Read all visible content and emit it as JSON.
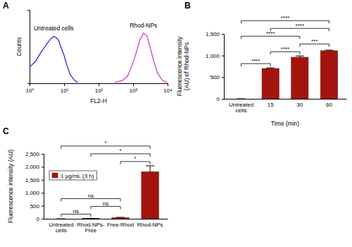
{
  "chart_data": [
    {
      "type": "line",
      "title": "A",
      "xlabel": "FL2-H",
      "ylabel": "Counts",
      "log": "x",
      "tick_labels": "x",
      "xlim": [
        1,
        10000
      ],
      "xticks": [
        {
          "value": 1,
          "label": "10⁰"
        },
        {
          "value": 10,
          "label": "10¹"
        },
        {
          "value": 100,
          "label": "10²"
        },
        {
          "value": 1000,
          "label": "10³"
        },
        {
          "value": 10000,
          "label": "10⁴"
        }
      ],
      "ylim": [
        0,
        100
      ],
      "yticks": [],
      "series": [
        {
          "name": "Untreated cells",
          "color": "#2a2ad4",
          "x": [
            1,
            1.5,
            2,
            3,
            4,
            5,
            6,
            7,
            8,
            10,
            12,
            15,
            20,
            25
          ],
          "values": [
            22,
            30,
            40,
            52,
            60,
            64,
            62,
            58,
            50,
            38,
            25,
            12,
            4,
            1
          ]
        },
        {
          "name": "Rhod-NPs",
          "color": "#d040c0",
          "x": [
            300,
            500,
            700,
            1000,
            1300,
            1600,
            2000,
            2500,
            3000,
            4000,
            5000,
            7000,
            10000
          ],
          "values": [
            1,
            4,
            10,
            28,
            45,
            60,
            68,
            65,
            52,
            30,
            15,
            4,
            1
          ]
        }
      ]
    },
    {
      "type": "bar",
      "title": "B",
      "xlabel": "Time (min)",
      "ylabel": "Fluorescence intensity (AU) of Rhod-NPs",
      "categories": [
        "Untreated cells",
        "15",
        "30",
        "60"
      ],
      "values": [
        0,
        700,
        960,
        1110
      ],
      "errors": [
        0,
        15,
        30,
        15
      ],
      "color": "#a3140f",
      "ylim": [
        0,
        1500
      ],
      "yticks": [
        0,
        500,
        {
          "value": 1000,
          "label": "1,000"
        },
        {
          "value": 1500,
          "label": "1,500"
        }
      ],
      "significance": [
        {
          "from": 0,
          "to": 1,
          "label": "****"
        },
        {
          "from": 0,
          "to": 2,
          "label": "****"
        },
        {
          "from": 0,
          "to": 3,
          "label": "****"
        },
        {
          "from": 1,
          "to": 2,
          "label": "****"
        },
        {
          "from": 1,
          "to": 3,
          "label": "****"
        },
        {
          "from": 2,
          "to": 3,
          "label": "***"
        }
      ]
    },
    {
      "type": "bar",
      "title": "C",
      "ylabel": "Fluorescence intensity (AU)",
      "categories": [
        "Untreated cells",
        "Rhod-NPs-Free",
        "Free-Rhod",
        "Rhod-NPs"
      ],
      "series": [
        {
          "name": "1 µg/mL (3 h)",
          "color": "#a3140f",
          "values": [
            0,
            10,
            40,
            1810
          ],
          "errors": [
            0,
            5,
            15,
            230
          ]
        }
      ],
      "legend": "upper left",
      "ylim": [
        0,
        2500
      ],
      "yticks": [
        0,
        500,
        {
          "value": 1000,
          "label": "1,000"
        },
        {
          "value": 1500,
          "label": "1,500"
        },
        {
          "value": 2000,
          "label": "2,000"
        },
        {
          "value": 2500,
          "label": "2,500"
        }
      ],
      "significance": [
        {
          "from": 0,
          "to": 1,
          "label": "ns"
        },
        {
          "from": 1,
          "to": 2,
          "label": "ns"
        },
        {
          "from": 0,
          "to": 2,
          "label": "ns"
        },
        {
          "from": 0,
          "to": 3,
          "label": "*"
        },
        {
          "from": 1,
          "to": 3,
          "label": "*"
        },
        {
          "from": 2,
          "to": 3,
          "label": "*"
        }
      ]
    }
  ]
}
